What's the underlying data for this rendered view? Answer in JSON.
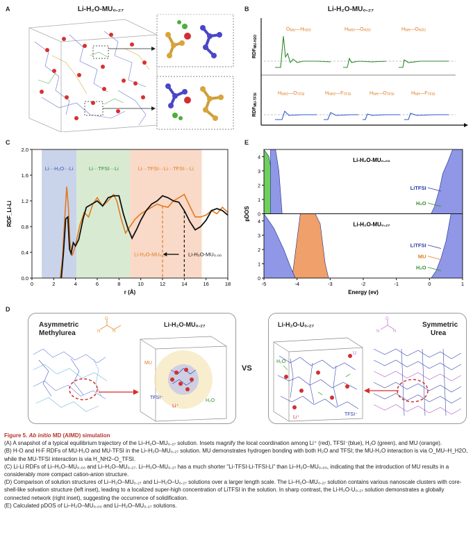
{
  "panels": {
    "A": {
      "label": "A",
      "title": "Li-H₂O-MU₀.₂₇"
    },
    "B": {
      "label": "B",
      "title": "Li-H₂O-MU₀.₂₇",
      "ylabel_top": "RDF_MU-H2O",
      "ylabel_bottom": "RDF_MU-TFSI",
      "top_labels": [
        "O_MU—H_H2O",
        "H_NH2—O_H2O",
        "H_NH—O_H2O"
      ],
      "bottom_labels": [
        "H_NH2—O_TFSI",
        "H_NH2—F_TFSI",
        "H_NH—O_TFSI",
        "H_NH—F_TFSI"
      ]
    },
    "C": {
      "label": "C",
      "ylabel": "RDF_Li-Li",
      "xlabel": "r (Å)",
      "region_labels": [
        "Li···H₂O···Li",
        "Li···TFSI···Li",
        "Li···TFSI···Li···TFSI···Li"
      ],
      "legend_orange": "Li-H₂O-MU₀.₂₇",
      "legend_black": "Li-H₂O-MU₀.₀₀"
    },
    "D": {
      "label": "D",
      "left_title_1": "Asymmetric",
      "left_title_2": "Methylurea",
      "left_inset_title": "Li-H₂O-MU₀.₂₇",
      "vs": "VS",
      "right_inset_title": "Li-H₂O-U₀.₂₇",
      "right_title_1": "Symmetric",
      "right_title_2": "Urea",
      "labels_left": [
        "MU",
        "TFSI⁻",
        "Li⁺",
        "H₂O"
      ],
      "labels_right": [
        "H₂O",
        "U",
        "Li⁺",
        "TFSI⁻"
      ]
    },
    "E": {
      "label": "E",
      "ylabel": "pDOS",
      "xlabel": "Energy (ev)",
      "top_title": "Li-H₂O-MU₀.₀₀",
      "bottom_title": "Li-H₂O-MU₀.₂₇",
      "top_legend": [
        "LiTFSI",
        "H₂O"
      ],
      "bottom_legend": [
        "LiTFSI",
        "MU",
        "H₂O"
      ]
    }
  },
  "chart_data": [
    {
      "id": "C",
      "type": "line",
      "xlabel": "r (Å)",
      "ylabel": "RDF Li-Li",
      "xlim": [
        0,
        18
      ],
      "ylim": [
        0,
        2.0
      ],
      "xticks": [
        "0",
        "2",
        "4",
        "6",
        "8",
        "10",
        "12",
        "14",
        "16",
        "18"
      ],
      "yticks": [
        "0.0",
        "0.4",
        "0.8",
        "1.2",
        "1.6",
        "2.0"
      ],
      "regions": [
        {
          "from": 0.9,
          "to": 4.1,
          "color": "#c9d3ea"
        },
        {
          "from": 4.1,
          "to": 9.0,
          "color": "#d8ebd2"
        },
        {
          "from": 9.0,
          "to": 15.6,
          "color": "#f9d9c7"
        }
      ],
      "markers": [
        {
          "x": 12.0,
          "color": "#e07b20"
        },
        {
          "x": 14.0,
          "color": "#111111"
        }
      ],
      "series": [
        {
          "name": "Li-H₂O-MU₀.₂₇",
          "color": "#e07b20",
          "x": [
            2.6,
            2.8,
            3.0,
            3.2,
            3.35,
            3.5,
            3.7,
            3.9,
            4.1,
            4.4,
            4.8,
            5.2,
            5.6,
            6.0,
            6.5,
            7.0,
            7.5,
            7.8,
            8.2,
            8.6,
            9.0,
            9.5,
            10.0,
            10.5,
            11.0,
            11.5,
            12.0,
            12.5,
            13.0,
            13.5,
            14.0,
            14.5,
            15.0,
            15.5,
            16.0,
            16.5,
            17.0,
            17.5,
            18.0
          ],
          "y": [
            0.0,
            0.3,
            0.9,
            1.42,
            1.1,
            0.55,
            0.35,
            0.45,
            0.58,
            0.82,
            1.02,
            0.95,
            1.15,
            1.25,
            1.12,
            1.2,
            1.3,
            1.2,
            0.92,
            0.7,
            0.8,
            0.92,
            1.0,
            1.05,
            1.1,
            1.15,
            1.12,
            1.1,
            1.2,
            1.25,
            1.3,
            1.12,
            0.95,
            0.95,
            0.98,
            1.05,
            1.0,
            1.1,
            1.02
          ]
        },
        {
          "name": "Li-H₂O-MU₀.₀₀",
          "color": "#111111",
          "x": [
            2.7,
            2.9,
            3.1,
            3.3,
            3.45,
            3.6,
            3.8,
            4.0,
            4.3,
            4.7,
            5.0,
            5.5,
            6.0,
            6.5,
            7.0,
            7.5,
            8.0,
            8.4,
            8.8,
            9.2,
            9.6,
            10.0,
            10.5,
            11.0,
            11.5,
            12.0,
            12.5,
            13.0,
            13.5,
            14.0,
            14.5,
            15.0,
            15.5,
            16.0,
            16.5,
            17.0,
            17.5,
            18.0
          ],
          "y": [
            0.0,
            0.4,
            0.92,
            0.95,
            0.45,
            0.38,
            0.55,
            0.5,
            0.6,
            0.92,
            1.1,
            1.15,
            1.2,
            1.12,
            1.25,
            1.28,
            1.28,
            1.0,
            0.78,
            0.62,
            0.75,
            0.9,
            1.05,
            1.15,
            1.2,
            1.28,
            1.25,
            1.2,
            1.18,
            1.05,
            0.88,
            0.75,
            0.8,
            0.9,
            1.05,
            1.08,
            1.05,
            0.98
          ]
        }
      ]
    },
    {
      "id": "E",
      "type": "area",
      "xlabel": "Energy (ev)",
      "ylabel": "pDOS",
      "xlim": [
        -5,
        1
      ],
      "ylim": [
        0,
        4.5
      ],
      "xticks": [
        "-5",
        "-4",
        "-3",
        "-2",
        "-1",
        "0",
        "1"
      ],
      "yticks": [
        "0",
        "1",
        "2",
        "3",
        "4"
      ],
      "subplots": [
        {
          "title": "Li-H₂O-MU₀.₀₀",
          "series": [
            {
              "name": "LiTFSI",
              "color": "#8f97e6",
              "x": [
                -4.8,
                -4.65,
                -4.55,
                -4.45,
                0.05,
                0.15,
                0.3,
                0.4,
                0.55,
                0.7,
                1.0
              ],
              "y": [
                4.5,
                4.5,
                3.0,
                0.0,
                0.0,
                0.5,
                1.7,
                2.8,
                3.6,
                4.5,
                4.5
              ]
            },
            {
              "name": "H₂O",
              "color": "#6ed05d",
              "x": [
                -5.0,
                -4.85,
                -4.7,
                -4.6,
                -4.5,
                0.05,
                0.2,
                0.4,
                0.7,
                1.0
              ],
              "y": [
                4.5,
                4.0,
                2.0,
                0.8,
                0.0,
                0.0,
                0.25,
                0.5,
                0.4,
                0.45
              ]
            }
          ]
        },
        {
          "title": "Li-H₂O-MU₀.₂₇",
          "series": [
            {
              "name": "LiTFSI",
              "color": "#8f97e6",
              "x": [
                -5.0,
                -4.7,
                -4.4,
                -4.2,
                -4.05,
                0.05,
                0.2,
                0.35,
                0.5,
                0.65,
                1.0
              ],
              "y": [
                4.5,
                3.5,
                2.0,
                0.8,
                0.0,
                0.0,
                0.5,
                1.4,
                2.6,
                4.5,
                4.5
              ]
            },
            {
              "name": "MU",
              "color": "#f0a06a",
              "x": [
                -4.15,
                -3.9,
                -3.6,
                -3.45,
                -3.3,
                -3.15,
                -3.05,
                0.6,
                0.8,
                1.0
              ],
              "y": [
                0.0,
                4.5,
                4.5,
                4.5,
                3.8,
                1.0,
                0.0,
                0.0,
                0.5,
                0.9
              ]
            },
            {
              "name": "H₂O",
              "color": "#6ed05d",
              "x": [
                -5.0,
                -4.8,
                -4.6,
                -4.4,
                -4.2,
                0.1,
                0.4,
                0.7,
                1.0
              ],
              "y": [
                3.5,
                2.0,
                1.0,
                0.4,
                0.0,
                0.0,
                0.3,
                0.25,
                0.3
              ]
            }
          ]
        }
      ]
    }
  ],
  "caption": {
    "title_prefix": "Figure 5.",
    "title_italic": "Ab initio",
    "title_rest": "MD (AIMD) simulation",
    "lines": [
      "(A) A snapshot of a typical equilibrium trajectory of the Li–H₂O–MU₀.₂₇ solution. Insets magnify the local coordination among Li⁺ (red), TFSI⁻(blue), H₂O (green), and MU (orange).",
      "(B) H-O and H-F RDFs of MU-H₂O and MU-TFSI in the Li–H₂O–MU₀.₂₇ solution. MU demonstrates hydrogen bonding with both H₂O and TFSI; the MU-H₂O interaction is via O_MU–H_H2O, while the MU-TFSI interaction is via H_NH2–O_TFSI.",
      "(C) Li-Li RDFs of Li–H₂O–MU₀.₀₀ and Li–H₂O–MU₀.₂₇. Li–H₂O–MU₀.₂₇ has a much shorter \"Li-TFSI-Li-TFSI-Li\" than Li–H₂O–MU₀.₀₀, indicating that the introduction of MU results in a considerably more compact cation-anion structure.",
      "(D) Comparison of solution structures of Li–H₂O–MU₀.₂₇ and Li–H₂O–U₀.₂₇ solutions over a larger length scale. The Li–H₂O–MU₀.₂₇ solution contains various nanoscale clusters with core-shell-like solvation structure (left inset), leading to a localized super-high concentration of LiTFSI in the solution. In sharp contrast, the Li-H₂O-U₀.₂₇ solution demonstrates a globally connected network (right inset), suggesting the occurrence of solidification.",
      "(E) Calculated pDOS of Li–H₂O–MU₀.₀₀ and Li–H₂O–MU₀.₂₇ solutions."
    ]
  }
}
